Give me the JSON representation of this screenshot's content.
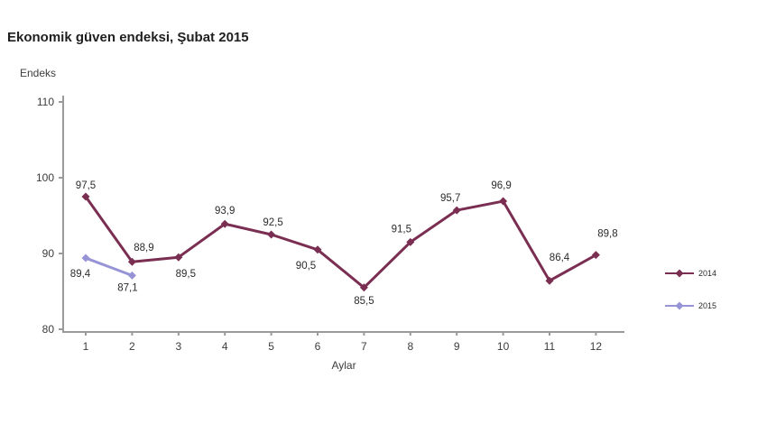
{
  "title": "Ekonomik güven endeksi, Şubat 2015",
  "chart_data": {
    "type": "line",
    "title": "Ekonomik güven endeksi, Şubat 2015",
    "xlabel": "Aylar",
    "ylabel": "Endeks",
    "x": [
      1,
      2,
      3,
      4,
      5,
      6,
      7,
      8,
      9,
      10,
      11,
      12
    ],
    "xtick_labels": [
      "1",
      "2",
      "3",
      "4",
      "5",
      "6",
      "7",
      "8",
      "9",
      "10",
      "11",
      "12"
    ],
    "ylim": [
      80,
      110
    ],
    "yticks": [
      80,
      90,
      100,
      110
    ],
    "grid": false,
    "legend_position": "right",
    "series": [
      {
        "name": "2014",
        "color": "#7a2e52",
        "values": [
          97.5,
          88.9,
          89.5,
          93.9,
          92.5,
          90.5,
          85.5,
          91.5,
          95.7,
          96.9,
          86.4,
          89.8
        ]
      },
      {
        "name": "2015",
        "color": "#9693d6",
        "values": [
          89.4,
          87.1
        ]
      }
    ],
    "axis_color": "#9a9a9a",
    "tick_text_color": "#3c3c3c",
    "label_text_color": "#2b2b2b"
  }
}
